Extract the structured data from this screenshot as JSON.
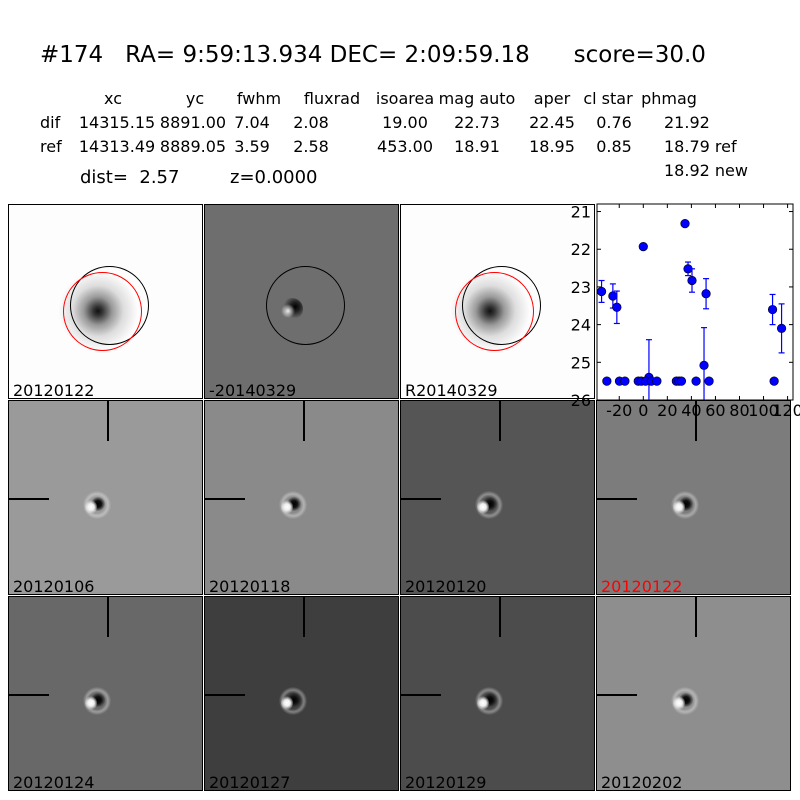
{
  "title": "#174   RA= 9:59:13.934 DEC= 2:09:59.18      score=30.0",
  "table": {
    "headers": [
      "xc",
      "yc",
      "fwhm",
      "fluxrad",
      "isoarea",
      "mag auto",
      "aper",
      "cl star",
      "phmag"
    ],
    "rows": [
      {
        "label": "dif",
        "values": [
          "14315.15",
          "8891.00",
          "7.04",
          "2.08",
          "19.00",
          "22.73",
          "22.45",
          "0.76",
          "21.92"
        ]
      },
      {
        "label": "ref",
        "values": [
          "14313.49",
          "8889.05",
          "3.59",
          "2.58",
          "453.00",
          "18.91",
          "18.95",
          "0.85",
          "18.79 ref"
        ]
      }
    ],
    "extra": "18.92 new"
  },
  "dist": "dist=  2.57",
  "z": "z=0.0000",
  "stamps": [
    {
      "label": "20120122",
      "bg": "#fdfdfd",
      "type": "ref",
      "label_color": "#000000"
    },
    {
      "label": "-20140329",
      "bg": "#6e6e6e",
      "type": "diff",
      "label_color": "#000000"
    },
    {
      "label": "R20140329",
      "bg": "#fdfdfd",
      "type": "ref",
      "label_color": "#000000"
    },
    {
      "label": "20120106",
      "bg": "#9a9a9a",
      "type": "epoch",
      "label_color": "#000000"
    },
    {
      "label": "20120118",
      "bg": "#8a8a8a",
      "type": "epoch",
      "label_color": "#000000"
    },
    {
      "label": "20120120",
      "bg": "#555555",
      "type": "epoch",
      "label_color": "#000000"
    },
    {
      "label": "20120122",
      "bg": "#7c7c7c",
      "type": "epoch",
      "label_color": "#ff0000"
    },
    {
      "label": "20120124",
      "bg": "#686868",
      "type": "epoch",
      "label_color": "#000000"
    },
    {
      "label": "20120127",
      "bg": "#3e3e3e",
      "type": "epoch",
      "label_color": "#000000"
    },
    {
      "label": "20120129",
      "bg": "#4c4c4c",
      "type": "epoch",
      "label_color": "#000000"
    },
    {
      "label": "20120202",
      "bg": "#8e8e8e",
      "type": "epoch",
      "label_color": "#000000"
    }
  ],
  "chart_data": {
    "type": "scatter",
    "xlim": [
      -38.5,
      124.5
    ],
    "ylim": [
      26,
      20.8
    ],
    "y_inverted": true,
    "x_ticks": [
      "-20",
      "0",
      "20",
      "40",
      "60",
      "80",
      "100",
      "120"
    ],
    "y_ticks": [
      "21",
      "22",
      "23",
      "24",
      "25",
      "26"
    ],
    "color": "#0000ff",
    "points": [
      {
        "x": -34.7,
        "y": 23.12,
        "err": 0.29
      },
      {
        "x": -25.3,
        "y": 23.24,
        "err": 0.32
      },
      {
        "x": -22.0,
        "y": 23.54,
        "err": 0.43
      },
      {
        "x": 0.0,
        "y": 21.93,
        "err": 0
      },
      {
        "x": 34.7,
        "y": 21.32,
        "err": 0
      },
      {
        "x": 37.2,
        "y": 22.52,
        "err": 0.18
      },
      {
        "x": 40.5,
        "y": 22.83,
        "err": 0.31
      },
      {
        "x": 52.2,
        "y": 23.18,
        "err": 0.4
      },
      {
        "x": 50.5,
        "y": 25.08,
        "err": 1.0
      },
      {
        "x": 107.5,
        "y": 23.6,
        "err": 0.4
      },
      {
        "x": 115.0,
        "y": 24.1,
        "err": 0.65
      },
      {
        "x": 4.7,
        "y": 25.4,
        "err": 1.0
      },
      {
        "x": -30.3,
        "y": 25.5,
        "err": 0.05
      },
      {
        "x": -19.8,
        "y": 25.5,
        "err": 0.05
      },
      {
        "x": -15.3,
        "y": 25.5,
        "err": 0.05
      },
      {
        "x": -4.2,
        "y": 25.5,
        "err": 0.05
      },
      {
        "x": -1.7,
        "y": 25.5,
        "err": 0.05
      },
      {
        "x": 1.9,
        "y": 25.5,
        "err": 0.05
      },
      {
        "x": 6.7,
        "y": 25.5,
        "err": 0.05
      },
      {
        "x": 11.3,
        "y": 25.5,
        "err": 0.05
      },
      {
        "x": 27.5,
        "y": 25.5,
        "err": 0.05
      },
      {
        "x": 29.7,
        "y": 25.5,
        "err": 0.05
      },
      {
        "x": 31.7,
        "y": 25.5,
        "err": 0.05
      },
      {
        "x": 43.9,
        "y": 25.5,
        "err": 0.05
      },
      {
        "x": 54.7,
        "y": 25.5,
        "err": 0.05
      },
      {
        "x": 108.8,
        "y": 25.5,
        "err": 0.05
      }
    ]
  }
}
